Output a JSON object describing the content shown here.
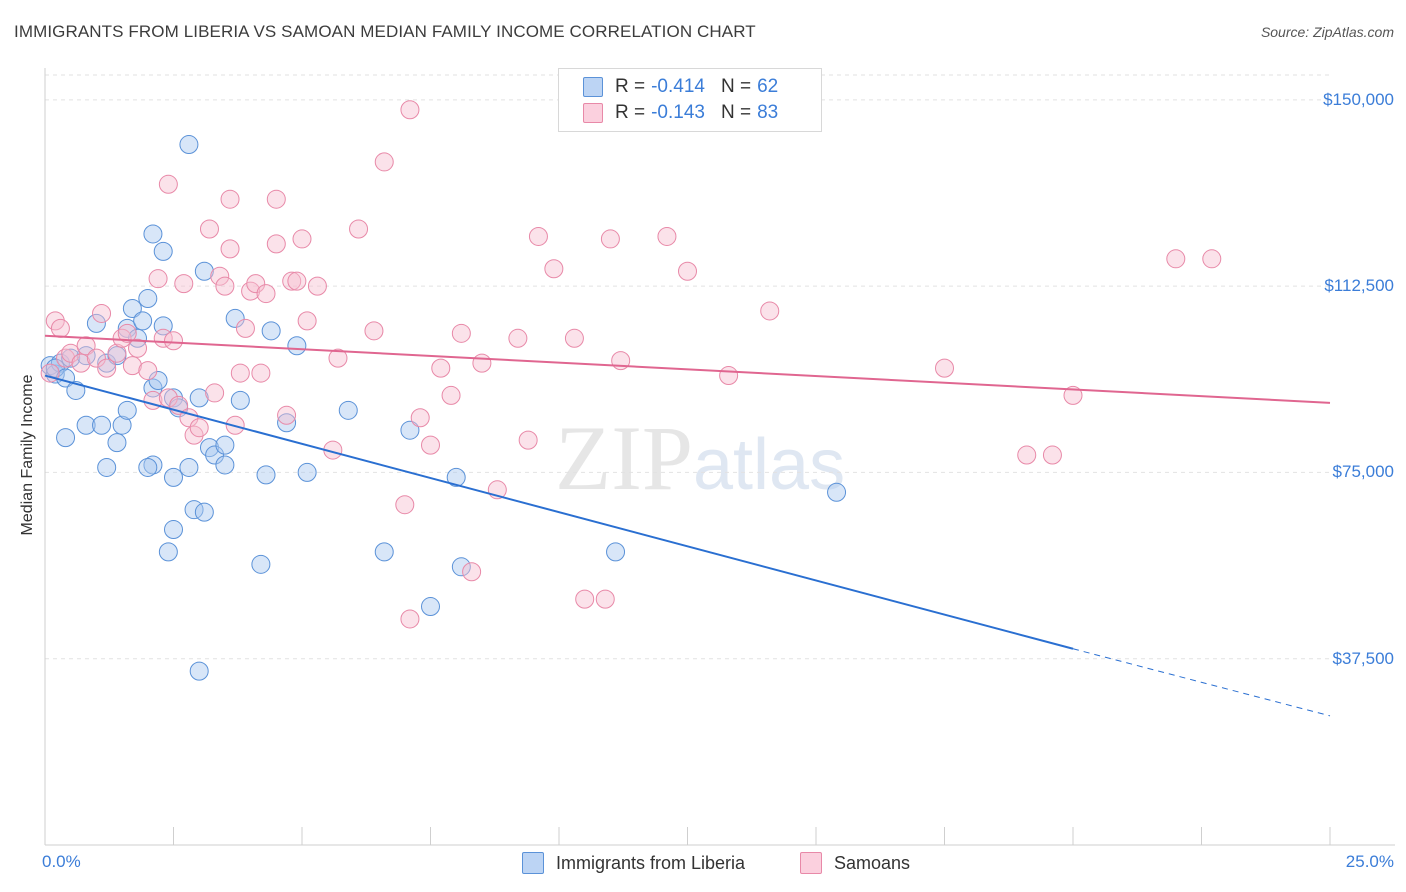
{
  "title": "IMMIGRANTS FROM LIBERIA VS SAMOAN MEDIAN FAMILY INCOME CORRELATION CHART",
  "source": "Source: ZipAtlas.com",
  "watermark": {
    "zip": "ZIP",
    "atlas": "atlas"
  },
  "legend": {
    "r_label": "R =",
    "n_label": "N =",
    "rows": [
      {
        "r": "-0.414",
        "n": "62"
      },
      {
        "r": "-0.143",
        "n": "83"
      }
    ]
  },
  "chart_data": {
    "type": "scatter",
    "title": "IMMIGRANTS FROM LIBERIA VS SAMOAN MEDIAN FAMILY INCOME CORRELATION CHART",
    "ylabel": "Median Family Income",
    "xlabel": "",
    "xlim": [
      0,
      25
    ],
    "ylim": [
      0,
      155000
    ],
    "x_tick_labels": [
      "0.0%",
      "25.0%"
    ],
    "y_tick_values": [
      37500,
      75000,
      112500,
      150000
    ],
    "y_tick_labels": [
      "$37,500",
      "$75,000",
      "$112,500",
      "$150,000"
    ],
    "grid": "horizontal dashed",
    "legend_position": "top-center",
    "colors": {
      "liberia_fill": "#a9c8f0",
      "liberia_stroke": "#5b92d8",
      "liberia_line": "#2a6fd1",
      "samoan_fill": "#f7bfd0",
      "samoan_stroke": "#e889a8",
      "samoan_line": "#e06690"
    },
    "series": [
      {
        "name": "Immigrants from Liberia",
        "color": "#5b92d8",
        "trend": {
          "x0": 0.0,
          "y0": 94500,
          "x1": 20.0,
          "y1": 39500,
          "dash_to_x": 25.0,
          "dash_to_y": 26000
        },
        "points": [
          [
            0.1,
            96500
          ],
          [
            0.2,
            94800
          ],
          [
            0.3,
            97000
          ],
          [
            0.2,
            96000
          ],
          [
            0.4,
            94000
          ],
          [
            0.5,
            98000
          ],
          [
            0.6,
            91500
          ],
          [
            0.8,
            98500
          ],
          [
            1.0,
            105000
          ],
          [
            1.2,
            97000
          ],
          [
            1.4,
            98500
          ],
          [
            1.6,
            104000
          ],
          [
            1.8,
            102000
          ],
          [
            1.7,
            108000
          ],
          [
            2.0,
            110000
          ],
          [
            1.9,
            105500
          ],
          [
            2.1,
            92000
          ],
          [
            2.2,
            93500
          ],
          [
            2.3,
            104500
          ],
          [
            2.5,
            90000
          ],
          [
            2.6,
            88000
          ],
          [
            0.4,
            82000
          ],
          [
            0.8,
            84500
          ],
          [
            1.1,
            84500
          ],
          [
            1.4,
            81000
          ],
          [
            1.5,
            84500
          ],
          [
            1.6,
            87500
          ],
          [
            2.1,
            76500
          ],
          [
            2.0,
            76000
          ],
          [
            2.5,
            74000
          ],
          [
            2.8,
            76000
          ],
          [
            3.2,
            80000
          ],
          [
            3.3,
            78500
          ],
          [
            3.5,
            80500
          ],
          [
            1.2,
            76000
          ],
          [
            2.5,
            63500
          ],
          [
            2.4,
            59000
          ],
          [
            2.9,
            67500
          ],
          [
            3.1,
            67000
          ],
          [
            3.5,
            76500
          ],
          [
            3.8,
            89500
          ],
          [
            3.7,
            106000
          ],
          [
            4.4,
            103500
          ],
          [
            4.7,
            85000
          ],
          [
            4.9,
            100500
          ],
          [
            5.1,
            75000
          ],
          [
            5.9,
            87500
          ],
          [
            6.6,
            59000
          ],
          [
            7.1,
            83500
          ],
          [
            8.0,
            74000
          ],
          [
            4.3,
            74500
          ],
          [
            4.2,
            56500
          ],
          [
            2.8,
            141000
          ],
          [
            2.1,
            123000
          ],
          [
            2.3,
            119500
          ],
          [
            3.1,
            115500
          ],
          [
            3.0,
            90000
          ],
          [
            8.1,
            56000
          ],
          [
            7.5,
            48000
          ],
          [
            11.1,
            59000
          ],
          [
            15.4,
            71000
          ],
          [
            3.0,
            35000
          ]
        ]
      },
      {
        "name": "Samoans",
        "color": "#e889a8",
        "trend": {
          "x0": 0.0,
          "y0": 102500,
          "x1": 25.0,
          "y1": 89000
        },
        "points": [
          [
            0.1,
            95000
          ],
          [
            0.2,
            105500
          ],
          [
            0.3,
            104000
          ],
          [
            0.4,
            98000
          ],
          [
            0.5,
            99000
          ],
          [
            0.7,
            97000
          ],
          [
            0.8,
            100500
          ],
          [
            1.0,
            98000
          ],
          [
            1.1,
            107000
          ],
          [
            1.2,
            96000
          ],
          [
            1.4,
            99000
          ],
          [
            1.5,
            102000
          ],
          [
            1.6,
            103000
          ],
          [
            1.7,
            96500
          ],
          [
            1.8,
            100000
          ],
          [
            2.0,
            95500
          ],
          [
            2.1,
            89500
          ],
          [
            2.2,
            114000
          ],
          [
            2.4,
            90000
          ],
          [
            2.3,
            102000
          ],
          [
            2.5,
            101500
          ],
          [
            2.6,
            88500
          ],
          [
            2.7,
            113000
          ],
          [
            2.8,
            86000
          ],
          [
            2.9,
            82500
          ],
          [
            3.0,
            84000
          ],
          [
            3.2,
            124000
          ],
          [
            3.3,
            91000
          ],
          [
            3.4,
            114500
          ],
          [
            3.5,
            112500
          ],
          [
            3.6,
            120000
          ],
          [
            3.7,
            84500
          ],
          [
            3.8,
            95000
          ],
          [
            3.9,
            104000
          ],
          [
            4.0,
            111500
          ],
          [
            4.1,
            113000
          ],
          [
            4.2,
            95000
          ],
          [
            4.3,
            111000
          ],
          [
            4.5,
            121000
          ],
          [
            4.7,
            86500
          ],
          [
            4.8,
            113500
          ],
          [
            4.9,
            113500
          ],
          [
            5.0,
            122000
          ],
          [
            5.1,
            105500
          ],
          [
            5.3,
            112500
          ],
          [
            5.6,
            79500
          ],
          [
            5.7,
            98000
          ],
          [
            6.1,
            124000
          ],
          [
            6.4,
            103500
          ],
          [
            6.6,
            137500
          ],
          [
            7.0,
            68500
          ],
          [
            7.1,
            45500
          ],
          [
            7.3,
            86000
          ],
          [
            7.5,
            80500
          ],
          [
            7.7,
            96000
          ],
          [
            7.9,
            90500
          ],
          [
            8.1,
            103000
          ],
          [
            8.3,
            55000
          ],
          [
            8.5,
            97000
          ],
          [
            8.8,
            71500
          ],
          [
            9.2,
            102000
          ],
          [
            9.4,
            81500
          ],
          [
            9.6,
            122500
          ],
          [
            9.9,
            116000
          ],
          [
            10.3,
            102000
          ],
          [
            10.5,
            49500
          ],
          [
            10.9,
            49500
          ],
          [
            11.0,
            122000
          ],
          [
            11.2,
            97500
          ],
          [
            12.1,
            122500
          ],
          [
            12.5,
            115500
          ],
          [
            13.3,
            94500
          ],
          [
            14.1,
            107500
          ],
          [
            17.5,
            96000
          ],
          [
            19.1,
            78500
          ],
          [
            19.6,
            78500
          ],
          [
            20.0,
            90500
          ],
          [
            22.0,
            118000
          ],
          [
            22.7,
            118000
          ],
          [
            7.1,
            148000
          ],
          [
            3.6,
            130000
          ],
          [
            4.5,
            130000
          ],
          [
            2.4,
            133000
          ]
        ]
      }
    ]
  },
  "bottom_legend": [
    {
      "label": "Immigrants from Liberia"
    },
    {
      "label": "Samoans"
    }
  ]
}
